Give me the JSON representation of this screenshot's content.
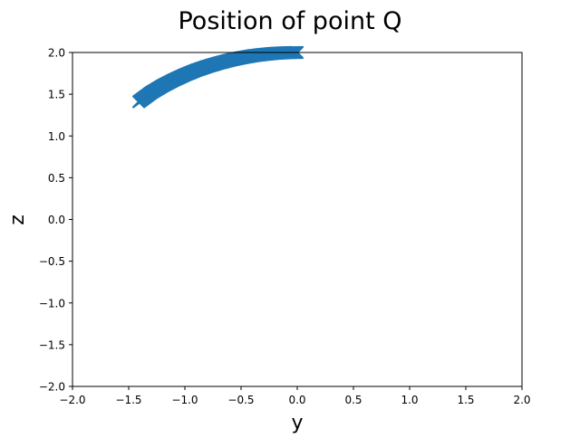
{
  "chart_data": {
    "type": "scatter",
    "title": "Position of point Q",
    "xlabel": "y",
    "ylabel": "z",
    "xlim": [
      -2.0,
      2.0
    ],
    "ylim": [
      -2.0,
      2.0
    ],
    "xticks": [
      -2.0,
      -1.5,
      -1.0,
      -0.5,
      0.0,
      0.5,
      1.0,
      1.5,
      2.0
    ],
    "yticks": [
      -2.0,
      -1.5,
      -1.0,
      -0.5,
      0.0,
      0.5,
      1.0,
      1.5,
      2.0
    ],
    "xtick_labels": [
      "−2.0",
      "−1.5",
      "−1.0",
      "−0.5",
      "0.0",
      "0.5",
      "1.0",
      "1.5",
      "2.0"
    ],
    "ytick_labels": [
      "−2.0",
      "−1.5",
      "−1.0",
      "−0.5",
      "0.0",
      "0.5",
      "1.0",
      "1.5",
      "2.0"
    ],
    "grid": false,
    "marker": "x",
    "color": "#1f77b4",
    "series": [
      {
        "x": [
          0.0,
          -0.1,
          -0.2,
          -0.3,
          -0.4,
          -0.5,
          -0.6,
          -0.7,
          -0.8,
          -0.9,
          -1.0,
          -1.1,
          -1.2,
          -1.3,
          -1.41
        ],
        "y": [
          2.0,
          1.997,
          1.99,
          1.977,
          1.96,
          1.936,
          1.908,
          1.873,
          1.833,
          1.787,
          1.732,
          1.67,
          1.6,
          1.519,
          1.41
        ]
      }
    ]
  }
}
